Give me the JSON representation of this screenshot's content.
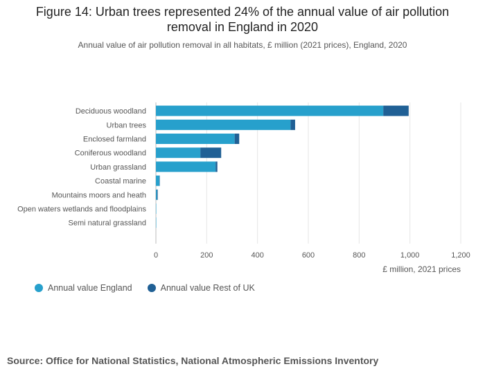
{
  "title_lines": [
    "Figure 14: Urban trees represented 24% of the annual value of air pollution",
    "removal in England in 2020"
  ],
  "subtitle": "Annual value of air pollution removal in all habitats, £ million (2021 prices), England, 2020",
  "source": "Source: Office for National Statistics, National Atmospheric Emissions Inventory",
  "chart_data": {
    "type": "bar",
    "orientation": "horizontal",
    "stacked": true,
    "categories": [
      "Deciduous woodland",
      "Urban trees",
      "Enclosed farmland",
      "Coniferous woodland",
      "Urban grassland",
      "Coastal marine",
      "Mountains moors and heath",
      "Open waters wetlands and floodplains",
      "Semi natural grassland"
    ],
    "series": [
      {
        "name": "Annual value England",
        "color": "#27a0cc",
        "values": [
          895,
          530,
          310,
          175,
          235,
          14,
          4,
          1,
          1
        ]
      },
      {
        "name": "Annual value Rest of UK",
        "color": "#206095",
        "values": [
          100,
          18,
          18,
          82,
          7,
          1,
          3,
          0,
          0
        ]
      }
    ],
    "xlabel": "£ million, 2021 prices",
    "xlim": [
      0,
      1200
    ],
    "xticks": [
      0,
      200,
      400,
      600,
      800,
      1000,
      1200
    ],
    "xtick_labels": [
      "0",
      "200",
      "400",
      "600",
      "800",
      "1,000",
      "1,200"
    ],
    "grid": true,
    "legend_position": "bottom-left"
  }
}
